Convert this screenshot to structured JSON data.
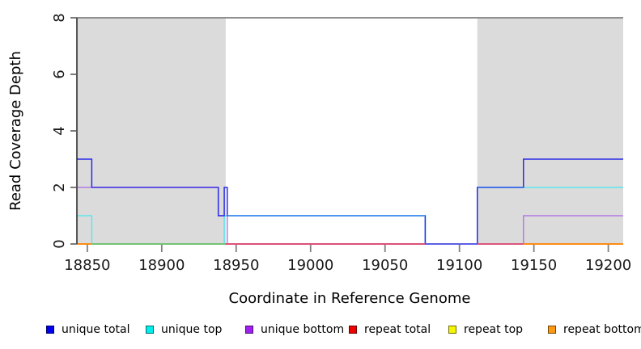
{
  "chart_data": {
    "type": "line",
    "style": "step-after",
    "title": "",
    "xlabel": "Coordinate in Reference Genome",
    "ylabel": "Read Coverage Depth",
    "xlim": [
      18843,
      19210
    ],
    "ylim": [
      0,
      8
    ],
    "xticks": [
      18850,
      18900,
      18950,
      19000,
      19050,
      19100,
      19150,
      19200
    ],
    "yticks": [
      0,
      2,
      4,
      6,
      8
    ],
    "grid": false,
    "legend_position": "bottom",
    "shaded_regions": {
      "color": "#DBDBDB",
      "ranges": [
        [
          18843,
          18943
        ],
        [
          19112,
          19210
        ]
      ]
    },
    "top_rule": {
      "y": 8,
      "color": "#8F8F8F"
    },
    "series": [
      {
        "name": "repeat top",
        "color": "#F5F500",
        "steps": [
          [
            18843,
            0
          ]
        ]
      },
      {
        "name": "repeat bottom",
        "color": "#FF9912",
        "steps": [
          [
            18843,
            0
          ]
        ]
      },
      {
        "name": "repeat total",
        "color": "#EE0000",
        "steps": [
          [
            18843,
            0
          ]
        ]
      },
      {
        "name": "unique bottom",
        "color": "#B57BE6",
        "steps": [
          [
            18843,
            2
          ],
          [
            18938,
            1
          ],
          [
            18944,
            0
          ],
          [
            19143,
            1
          ]
        ]
      },
      {
        "name": "unique top",
        "color": "#5FE6EA",
        "steps": [
          [
            18843,
            1
          ],
          [
            18853,
            0
          ],
          [
            18942,
            1
          ],
          [
            19077,
            0
          ],
          [
            19112,
            2
          ]
        ]
      },
      {
        "name": "unique total",
        "color": "#2B2BE8",
        "steps": [
          [
            18843,
            3
          ],
          [
            18853,
            2
          ],
          [
            18938,
            1
          ],
          [
            18942,
            2
          ],
          [
            18944,
            1
          ],
          [
            19077,
            0
          ],
          [
            19112,
            2
          ],
          [
            19143,
            3
          ]
        ]
      }
    ],
    "rendered_overlaps": [
      {
        "y": 0,
        "from": 18843,
        "to": 18853,
        "color": "#FF9912"
      },
      {
        "y": 0,
        "from": 18853,
        "to": 18943,
        "color": "#63CD70"
      },
      {
        "y": 0,
        "from": 18943,
        "to": 19077,
        "color": "#E04776"
      },
      {
        "y": 0,
        "from": 19077,
        "to": 19112,
        "color": "#5A5AEE"
      },
      {
        "y": 0,
        "from": 19112,
        "to": 19143,
        "color": "#DD4F7A"
      },
      {
        "y": 0,
        "from": 19143,
        "to": 19210,
        "color": "#FF9912"
      },
      {
        "y": 2,
        "from": 18853,
        "to": 18938,
        "color": "#584ADF"
      },
      {
        "y": 1,
        "from": 18944,
        "to": 19077,
        "color": "#4499F0"
      },
      {
        "y": 2,
        "from": 19112,
        "to": 19143,
        "color": "#3D6FE8"
      }
    ],
    "legend": [
      {
        "label": "unique total",
        "color": "#0000EE"
      },
      {
        "label": "unique top",
        "color": "#00EEEE"
      },
      {
        "label": "unique bottom",
        "color": "#A020F0"
      },
      {
        "label": "repeat total",
        "color": "#EE0000"
      },
      {
        "label": "repeat top",
        "color": "#F5F500"
      },
      {
        "label": "repeat bottom",
        "color": "#FF9912"
      }
    ]
  }
}
